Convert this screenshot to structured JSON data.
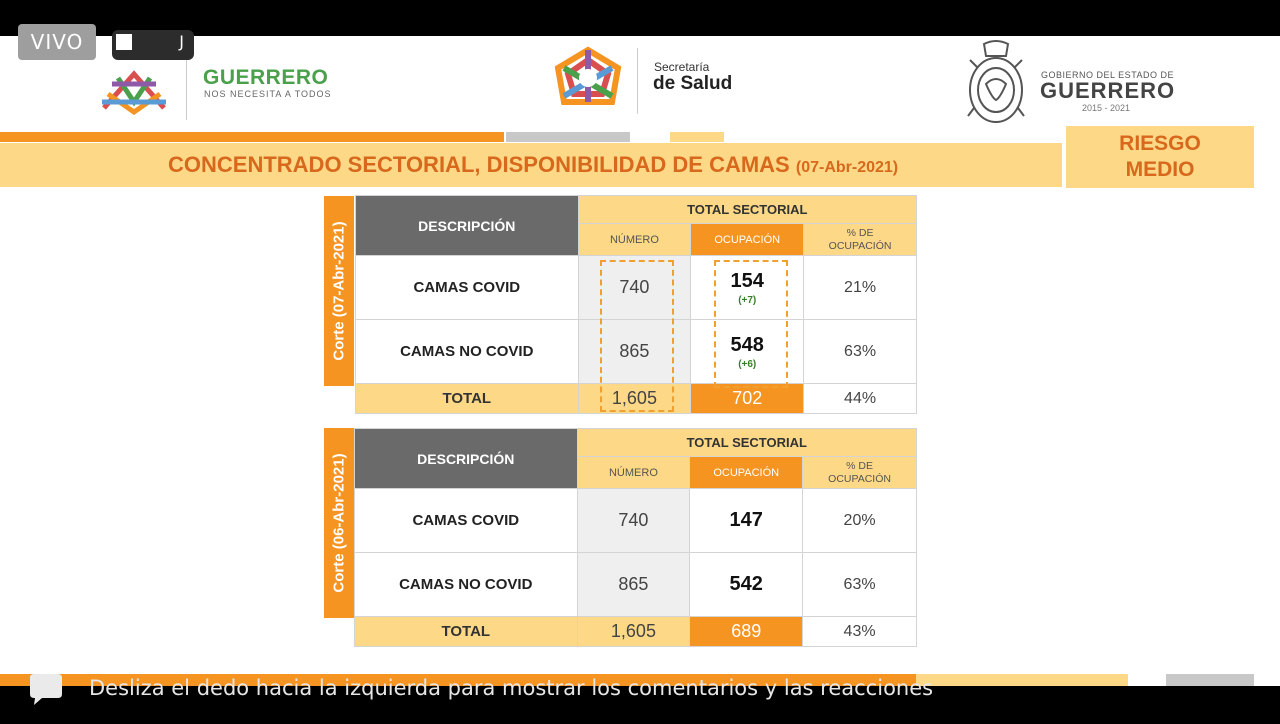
{
  "live": {
    "badge": "VIVO",
    "viewer_glyph": "J"
  },
  "header": {
    "guerrero_title": "GUERRERO",
    "guerrero_tagline": "NOS NECESITA A TODOS",
    "salud_line1": "Secretaría",
    "salud_line2": "de Salud",
    "gobierno_line1": "GOBIERNO DEL ESTADO DE",
    "gobierno_line2": "GUERRERO",
    "gobierno_years": "2015 - 2021"
  },
  "banner": {
    "title": "CONCENTRADO SECTORIAL, DISPONIBILIDAD DE CAMAS",
    "date": "(07-Abr-2021)",
    "risk_line1": "RIESGO",
    "risk_line2": "MEDIO"
  },
  "columns": {
    "descripcion": "DESCRIPCIÓN",
    "total_sectorial": "TOTAL SECTORIAL",
    "numero": "NÚMERO",
    "ocupacion": "OCUPACIÓN",
    "pct_line1": "% DE",
    "pct_line2": "OCUPACIÓN"
  },
  "tables": [
    {
      "corte": "Corte (07-Abr-2021)",
      "rows": [
        {
          "label": "CAMAS COVID",
          "numero": "740",
          "ocupacion": "154",
          "delta": "(+7)",
          "pct": "21%"
        },
        {
          "label": "CAMAS NO COVID",
          "numero": "865",
          "ocupacion": "548",
          "delta": "(+6)",
          "pct": "63%"
        }
      ],
      "total": {
        "label": "TOTAL",
        "numero": "1,605",
        "ocupacion": "702",
        "pct": "44%"
      }
    },
    {
      "corte": "Corte (06-Abr-2021)",
      "rows": [
        {
          "label": "CAMAS COVID",
          "numero": "740",
          "ocupacion": "147",
          "pct": "20%"
        },
        {
          "label": "CAMAS NO COVID",
          "numero": "865",
          "ocupacion": "542",
          "pct": "63%"
        }
      ],
      "total": {
        "label": "TOTAL",
        "numero": "1,605",
        "ocupacion": "689",
        "pct": "43%"
      }
    }
  ],
  "footer": {
    "swipe_hint": "Desliza el dedo hacia la izquierda para mostrar los comentarios y las reacciones"
  },
  "colors": {
    "orange": "#f59421",
    "light_orange": "#fcd887",
    "title_orange": "#d7681c",
    "green": "#4aa04b",
    "header_grey": "#6a6a6a"
  }
}
